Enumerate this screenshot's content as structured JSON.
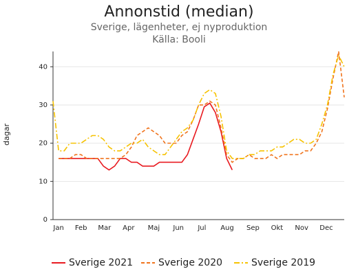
{
  "chart_data": {
    "type": "line",
    "title": "Annonstid (median)",
    "subtitle": "Sverige, lägenheter, ej nyproduktion",
    "source": "Källa: Booli",
    "ylabel": "dagar",
    "x": [
      0,
      1,
      2,
      3,
      4,
      5,
      6,
      7,
      8,
      9,
      10,
      11,
      12,
      13,
      14,
      15,
      16,
      17,
      18,
      19,
      20,
      21,
      22,
      23,
      24,
      25,
      26,
      27,
      28,
      29,
      30,
      31,
      32,
      33,
      34,
      35,
      36,
      37,
      38,
      39,
      40,
      41,
      42,
      43,
      44,
      45,
      46,
      47,
      48,
      49,
      50,
      51,
      52
    ],
    "xlim": [
      0,
      52
    ],
    "xticks": [
      {
        "value": 1,
        "label": "Jan"
      },
      {
        "value": 5,
        "label": "Feb"
      },
      {
        "value": 9.2,
        "label": "Mar"
      },
      {
        "value": 13.5,
        "label": "Apr"
      },
      {
        "value": 18,
        "label": "Maj"
      },
      {
        "value": 22.4,
        "label": "Jun"
      },
      {
        "value": 26.6,
        "label": "Jul"
      },
      {
        "value": 31.1,
        "label": "Aug"
      },
      {
        "value": 35.7,
        "label": "Sep"
      },
      {
        "value": 40,
        "label": "Okt"
      },
      {
        "value": 44.4,
        "label": "Nov"
      },
      {
        "value": 48.8,
        "label": "Dec"
      }
    ],
    "ylim": [
      0,
      44
    ],
    "yticks": [
      0,
      10,
      20,
      30,
      40
    ],
    "grid": true,
    "series": [
      {
        "name": "Sverige 2021",
        "color": "#e8191f",
        "dash": "solid",
        "values": [
          null,
          16,
          16,
          16,
          16,
          16,
          16,
          16,
          16,
          14,
          13,
          14,
          16,
          16,
          15,
          15,
          14,
          14,
          14,
          15,
          15,
          15,
          15,
          15,
          17,
          21,
          25,
          29.5,
          30.5,
          28,
          23,
          16,
          13,
          null,
          null,
          null,
          null,
          null,
          null,
          null,
          null,
          null,
          null,
          null,
          null,
          null,
          null,
          null,
          null,
          null,
          null,
          null,
          null
        ]
      },
      {
        "name": "Sverige 2020",
        "color": "#f0731c",
        "dash": "dashed",
        "values": [
          null,
          16,
          16,
          16,
          17,
          17,
          16,
          16,
          16,
          16,
          16,
          16,
          16,
          17,
          19,
          22,
          23,
          24,
          23,
          22,
          20,
          20,
          20,
          22,
          23,
          26,
          30,
          30,
          31,
          30,
          24,
          17,
          15,
          16,
          16,
          17,
          16,
          16,
          16,
          17,
          16,
          17,
          17,
          17,
          17,
          18,
          18,
          20,
          23,
          29,
          37,
          44,
          32
        ]
      },
      {
        "name": "Sverige 2019",
        "color": "#f6c200",
        "dash": "dashdot",
        "values": [
          31,
          18,
          18,
          20,
          20,
          20,
          21,
          22,
          22,
          21,
          19,
          18,
          18,
          19,
          20,
          20,
          21,
          19,
          18,
          17,
          17,
          19,
          21,
          23,
          24,
          26,
          30,
          33,
          34,
          33,
          27,
          18,
          16,
          16,
          16,
          17,
          17,
          18,
          18,
          18,
          19,
          19,
          20,
          21,
          21,
          20,
          20,
          21,
          25,
          30,
          38,
          43,
          40
        ]
      }
    ]
  }
}
